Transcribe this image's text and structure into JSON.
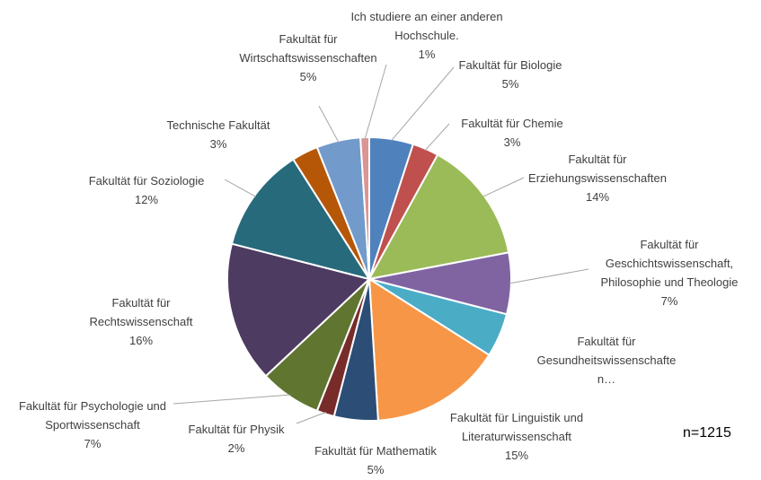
{
  "chart_data": {
    "type": "pie",
    "categories": [
      "Fakultät für Biologie",
      "Fakultät für Chemie",
      "Fakultät für Erziehungswissenschaften",
      "Fakultät für Geschichtswissenschaft, Philosophie und Theologie",
      "Fakultät für Gesundheitswissenschaften…",
      "Fakultät für Linguistik und Literaturwissenschaft",
      "Fakultät für Mathematik",
      "Fakultät für Physik",
      "Fakultät für Psychologie und Sportwissenschaft",
      "Fakultät für Rechtswissenschaft",
      "Fakultät für Soziologie",
      "Technische Fakultät",
      "Fakultät für Wirtschaftswissenschaften",
      "Ich studiere an einer anderen Hochschule."
    ],
    "values": [
      5,
      3,
      14,
      7,
      5,
      15,
      5,
      2,
      7,
      16,
      12,
      3,
      5,
      1
    ],
    "value_labels": [
      "5%",
      "3%",
      "14%",
      "7%",
      null,
      "15%",
      "5%",
      "2%",
      "7%",
      "16%",
      "12%",
      "3%",
      "5%",
      "1%"
    ],
    "colors": [
      "#4f81bd",
      "#c0504d",
      "#9bbb59",
      "#8064a2",
      "#4bacc6",
      "#f79646",
      "#2c4d75",
      "#772c2a",
      "#5f7530",
      "#4d3b62",
      "#276a7c",
      "#b65708",
      "#729aca",
      "#d99694"
    ],
    "annotation": "n=1215"
  }
}
